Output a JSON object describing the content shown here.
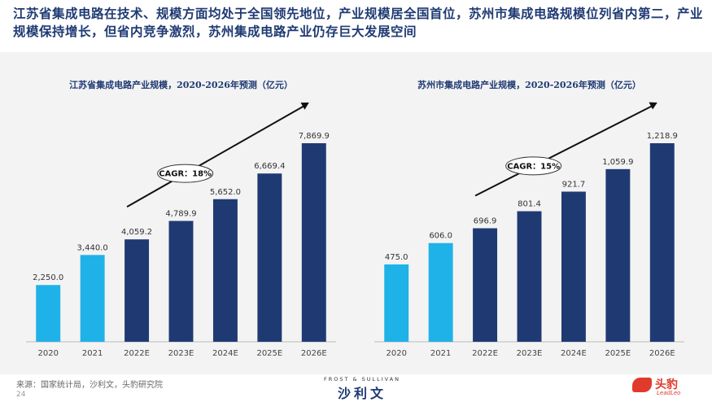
{
  "headline": "江苏省集成电路在技术、规模方面均处于全国领先地位，产业规模居全国首位，苏州市集成电路规模位列省内第二，产业规模保持增长，但省内竞争激烈，苏州集成电路产业仍存巨大发展空间",
  "colors": {
    "actual": "#1fb2e8",
    "forecast": "#1f3a73",
    "headline": "#1f3a73",
    "band": "#f3f3f3"
  },
  "chart_data": [
    {
      "type": "bar",
      "title": "江苏省集成电路产业规模，2020-2026年预测（亿元）",
      "categories": [
        "2020",
        "2021",
        "2022E",
        "2023E",
        "2024E",
        "2025E",
        "2026E"
      ],
      "values": [
        2250.0,
        3440.0,
        4059.2,
        4789.9,
        5652.0,
        6669.4,
        7869.9
      ],
      "value_labels": [
        "2,250.0",
        "3,440.0",
        "4,059.2",
        "4,789.9",
        "5,652.0",
        "6,669.4",
        "7,869.9"
      ],
      "ylim": [
        0,
        7869.9
      ],
      "annotation": "CAGR：18%",
      "grid": false
    },
    {
      "type": "bar",
      "title": "苏州市集成电路产业规模，2020-2026年预测（亿元）",
      "categories": [
        "2020",
        "2021",
        "2022E",
        "2023E",
        "2024E",
        "2025E",
        "2026E"
      ],
      "values": [
        475.0,
        606.0,
        696.9,
        801.4,
        921.7,
        1059.9,
        1218.9
      ],
      "value_labels": [
        "475.0",
        "606.0",
        "696.9",
        "801.4",
        "921.7",
        "1,059.9",
        "1,218.9"
      ],
      "ylim": [
        0,
        1218.9
      ],
      "annotation": "CAGR：15%",
      "grid": false
    }
  ],
  "footer": {
    "source": "来源：国家统计局，沙利文，头豹研究院",
    "page_number": "24",
    "brand_en": "FROST & SULLIVAN",
    "brand_zh": "沙利文",
    "logo_zh": "头豹",
    "logo_en": "LeadLeo"
  }
}
